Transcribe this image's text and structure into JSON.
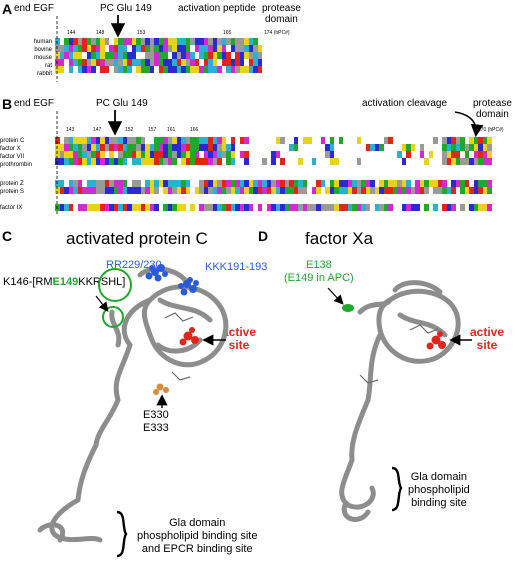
{
  "panelA": {
    "label": "A",
    "end_egf": "end EGF",
    "pc_glu": "PC Glu 149",
    "activation_peptide": "activation peptide",
    "protease_domain": "protease\ndomain",
    "ruler": [
      "144",
      "148",
      "153",
      "165",
      "174 (hPC#)"
    ],
    "species": [
      "human",
      "bovine",
      "mouse",
      "rat",
      "rabbit"
    ]
  },
  "panelB": {
    "label": "B",
    "end_egf": "end EGF",
    "pc_glu": "PC Glu 149",
    "activation_cleavage": "activation cleavage",
    "protease_domain": "protease\ndomain",
    "ruler": [
      "143",
      "147",
      "152",
      "157",
      "161",
      "166",
      "170 (hPC#)"
    ],
    "group1": [
      "protein C",
      "factor X",
      "factor VII",
      "prothrombin"
    ],
    "group2": [
      "protein Z",
      "protein S"
    ],
    "group3": [
      "factor IX"
    ]
  },
  "panelC": {
    "label": "C",
    "title": "activated protein C",
    "rr": "RR229/230",
    "kkk": "KKK191-193",
    "k146_pre": "K146-[RM",
    "k146_e": "E149",
    "k146_post": "KKRSHL]",
    "active_site": "active\nsite",
    "e330": "E330\nE333",
    "gla": "Gla domain\nphospholipid binding site\nand EPCR binding site"
  },
  "panelD": {
    "label": "D",
    "title": "factor Xa",
    "e138": "E138\n(E149 in APC)",
    "active_site": "active\nsite",
    "gla": "Gla domain\nphospholipid\nbinding site"
  },
  "colors": {
    "blue_residue": "#2a2ad0",
    "red_residue": "#e0261a",
    "green_residue": "#1fa82c",
    "magenta_residue": "#d02ad0",
    "yellow_residue": "#e8d21a",
    "cyan_residue": "#2ab0d0",
    "gray_residue": "#9a9a9a",
    "ribbon": "#8d8d8d"
  }
}
